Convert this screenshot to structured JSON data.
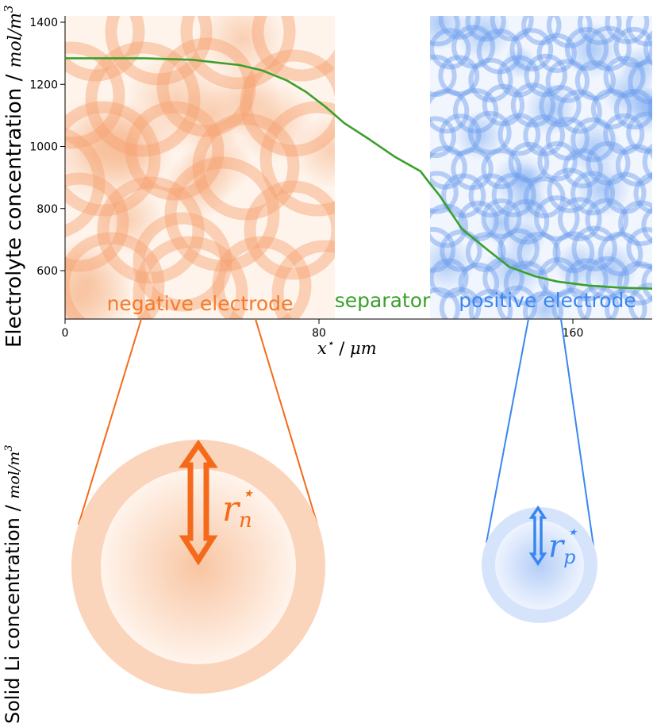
{
  "chart_data": {
    "type": "line",
    "ylabel": "Electrolyte concentration",
    "ylabel_unit": "mol/m",
    "ylabel_unit_sup": "3",
    "xlabel_var": "x",
    "xlabel_unit": "μm",
    "y_ticks": [
      600,
      800,
      1000,
      1200,
      1400
    ],
    "x_ticks": [
      0,
      80,
      160
    ],
    "xlim": [
      0,
      185
    ],
    "ylim": [
      450,
      1420
    ],
    "series": [
      {
        "color": "#3aa02a",
        "x": [
          0,
          25,
          40,
          55,
          62,
          70,
          76,
          82,
          88,
          96,
          104,
          112,
          115,
          118,
          125,
          133,
          140,
          148,
          155,
          165,
          175,
          185
        ],
        "y": [
          1284,
          1284,
          1279,
          1262,
          1245,
          1212,
          1175,
          1128,
          1075,
          1022,
          966,
          920,
          880,
          842,
          735,
          668,
          612,
          582,
          565,
          552,
          545,
          542
        ]
      }
    ],
    "regions": [
      {
        "label": "negative electrode",
        "color": "#f47a2a",
        "x_range": [
          0,
          85
        ]
      },
      {
        "label": "separator",
        "color": "#3aa02a",
        "x_range": [
          85,
          115
        ]
      },
      {
        "label": "positive electrode",
        "color": "#3a86f0",
        "x_range": [
          115,
          185
        ]
      }
    ]
  },
  "bottom": {
    "ylabel": "Solid Li concentration",
    "ylabel_unit": "mol/m",
    "ylabel_unit_sup": "3",
    "negative_particle_label": "r",
    "negative_particle_sub": "n",
    "positive_particle_label": "r",
    "positive_particle_sub": "p",
    "star": "⋆",
    "negative_color": "#f46a1a",
    "positive_color": "#3a86f0"
  }
}
